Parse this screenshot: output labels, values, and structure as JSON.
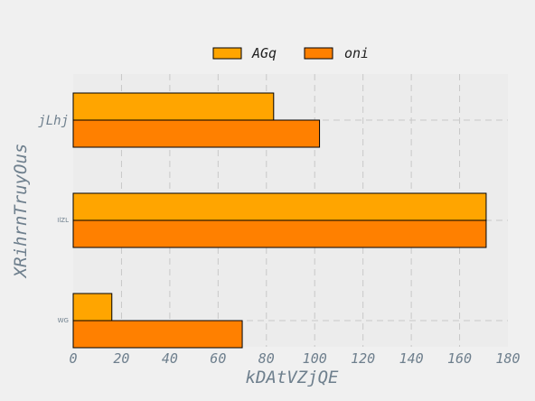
{
  "chart_data": {
    "type": "bar",
    "orientation": "horizontal",
    "categories": [
      "jLhj",
      "IlZL",
      "WG"
    ],
    "series": [
      {
        "name": "AGq",
        "values": [
          83,
          171,
          16
        ],
        "color": "#ffa500"
      },
      {
        "name": "oni",
        "values": [
          102,
          171,
          70
        ],
        "color": "#ff8000"
      }
    ],
    "xlabel": "kDAtVZjQE",
    "ylabel": "XRihrnTruyOus",
    "xlim": [
      0,
      180
    ],
    "xticks": [
      "0",
      "20",
      "40",
      "60",
      "80",
      "100",
      "120",
      "140",
      "160",
      "180"
    ],
    "grid": true,
    "legend_position": "top-center"
  }
}
